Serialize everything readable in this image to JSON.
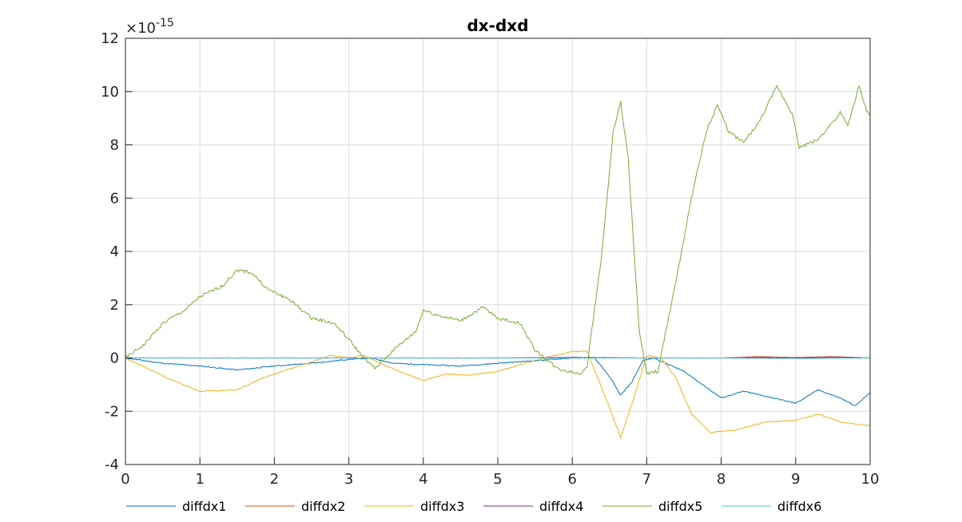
{
  "chart_data": {
    "type": "line",
    "title": "dx-dxd",
    "xlabel": "",
    "ylabel": "",
    "xlim": [
      0,
      10
    ],
    "ylim": [
      -4,
      12
    ],
    "y_exponent_label": "×10",
    "y_exponent": "-15",
    "xticks": [
      "0",
      "1",
      "2",
      "3",
      "4",
      "5",
      "6",
      "7",
      "8",
      "9",
      "10"
    ],
    "yticks": [
      "-4",
      "-2",
      "0",
      "2",
      "4",
      "6",
      "8",
      "10",
      "12"
    ],
    "grid": true,
    "legend_location": "bottom",
    "series": [
      {
        "name": "diffdx1",
        "color": "#0072BD",
        "points": [
          [
            0,
            0
          ],
          [
            0.5,
            -0.2
          ],
          [
            1,
            -0.3
          ],
          [
            1.5,
            -0.45
          ],
          [
            2,
            -0.3
          ],
          [
            2.5,
            -0.2
          ],
          [
            3,
            -0.05
          ],
          [
            3.3,
            0
          ],
          [
            3.6,
            -0.2
          ],
          [
            4,
            -0.25
          ],
          [
            4.5,
            -0.3
          ],
          [
            5,
            -0.2
          ],
          [
            5.5,
            -0.1
          ],
          [
            6,
            0
          ],
          [
            6.3,
            0
          ],
          [
            6.5,
            -0.7
          ],
          [
            6.65,
            -1.4
          ],
          [
            6.8,
            -0.9
          ],
          [
            6.95,
            -0.1
          ],
          [
            7.1,
            0
          ],
          [
            7.5,
            -0.5
          ],
          [
            7.8,
            -1.1
          ],
          [
            8,
            -1.5
          ],
          [
            8.3,
            -1.25
          ],
          [
            8.7,
            -1.5
          ],
          [
            9,
            -1.7
          ],
          [
            9.3,
            -1.2
          ],
          [
            9.6,
            -1.5
          ],
          [
            9.8,
            -1.8
          ],
          [
            10,
            -1.3
          ]
        ]
      },
      {
        "name": "diffdx2",
        "color": "#D95319",
        "points": [
          [
            0,
            0
          ],
          [
            5,
            0
          ],
          [
            6,
            0.02
          ],
          [
            7,
            0
          ],
          [
            8,
            0
          ],
          [
            8.5,
            0.05
          ],
          [
            9,
            0.02
          ],
          [
            9.5,
            0.05
          ],
          [
            10,
            0
          ]
        ]
      },
      {
        "name": "diffdx3",
        "color": "#EDB120",
        "points": [
          [
            0,
            0
          ],
          [
            0.3,
            -0.4
          ],
          [
            0.6,
            -0.8
          ],
          [
            1,
            -1.25
          ],
          [
            1.5,
            -1.2
          ],
          [
            1.8,
            -0.8
          ],
          [
            2.1,
            -0.5
          ],
          [
            2.5,
            -0.15
          ],
          [
            2.75,
            0.1
          ],
          [
            3,
            0
          ],
          [
            3.2,
            0.1
          ],
          [
            3.5,
            -0.3
          ],
          [
            4,
            -0.85
          ],
          [
            4.3,
            -0.6
          ],
          [
            4.6,
            -0.65
          ],
          [
            5,
            -0.5
          ],
          [
            5.5,
            -0.1
          ],
          [
            6,
            0.25
          ],
          [
            6.2,
            0.25
          ],
          [
            6.45,
            -1.5
          ],
          [
            6.65,
            -3.0
          ],
          [
            6.85,
            -1.3
          ],
          [
            7,
            0.1
          ],
          [
            7.2,
            0
          ],
          [
            7.4,
            -0.8
          ],
          [
            7.6,
            -2.1
          ],
          [
            7.85,
            -2.8
          ],
          [
            8.2,
            -2.7
          ],
          [
            8.6,
            -2.4
          ],
          [
            9,
            -2.35
          ],
          [
            9.3,
            -2.1
          ],
          [
            9.6,
            -2.4
          ],
          [
            10,
            -2.55
          ]
        ]
      },
      {
        "name": "diffdx4",
        "color": "#7E2F8E",
        "points": [
          [
            0,
            0
          ],
          [
            5,
            0
          ],
          [
            6,
            0.02
          ],
          [
            7,
            0
          ],
          [
            8,
            0
          ],
          [
            8.5,
            0.02
          ],
          [
            9,
            0
          ],
          [
            9.5,
            0.03
          ],
          [
            10,
            0
          ]
        ]
      },
      {
        "name": "diffdx5",
        "color": "#77AC30",
        "points": [
          [
            0,
            0
          ],
          [
            0.25,
            0.5
          ],
          [
            0.5,
            1.3
          ],
          [
            0.8,
            1.8
          ],
          [
            1,
            2.3
          ],
          [
            1.3,
            2.7
          ],
          [
            1.5,
            3.3
          ],
          [
            1.7,
            3.2
          ],
          [
            1.9,
            2.6
          ],
          [
            2.2,
            2.2
          ],
          [
            2.5,
            1.5
          ],
          [
            2.8,
            1.3
          ],
          [
            3.0,
            0.7
          ],
          [
            3.2,
            0
          ],
          [
            3.35,
            -0.4
          ],
          [
            3.6,
            0.3
          ],
          [
            3.9,
            1.0
          ],
          [
            4.0,
            1.8
          ],
          [
            4.2,
            1.6
          ],
          [
            4.5,
            1.4
          ],
          [
            4.8,
            1.9
          ],
          [
            5.0,
            1.5
          ],
          [
            5.3,
            1.3
          ],
          [
            5.5,
            0.3
          ],
          [
            5.8,
            -0.4
          ],
          [
            6.1,
            -0.6
          ],
          [
            6.2,
            -0.3
          ],
          [
            6.4,
            4.0
          ],
          [
            6.55,
            8.5
          ],
          [
            6.65,
            9.6
          ],
          [
            6.75,
            7.5
          ],
          [
            6.9,
            1.0
          ],
          [
            7.0,
            -0.6
          ],
          [
            7.15,
            -0.5
          ],
          [
            7.4,
            3.0
          ],
          [
            7.6,
            6.0
          ],
          [
            7.8,
            8.5
          ],
          [
            7.95,
            9.5
          ],
          [
            8.1,
            8.5
          ],
          [
            8.3,
            8.1
          ],
          [
            8.5,
            8.8
          ],
          [
            8.75,
            10.2
          ],
          [
            8.95,
            9.2
          ],
          [
            9.05,
            7.9
          ],
          [
            9.3,
            8.2
          ],
          [
            9.6,
            9.2
          ],
          [
            9.7,
            8.7
          ],
          [
            9.85,
            10.2
          ],
          [
            9.95,
            9.3
          ],
          [
            10,
            9.1
          ]
        ]
      },
      {
        "name": "diffdx6",
        "color": "#4DBEEE",
        "points": [
          [
            0,
            0
          ],
          [
            5,
            0
          ],
          [
            6,
            0
          ],
          [
            7,
            0
          ],
          [
            8,
            0
          ],
          [
            9,
            -0.02
          ],
          [
            10,
            0
          ]
        ]
      }
    ]
  }
}
